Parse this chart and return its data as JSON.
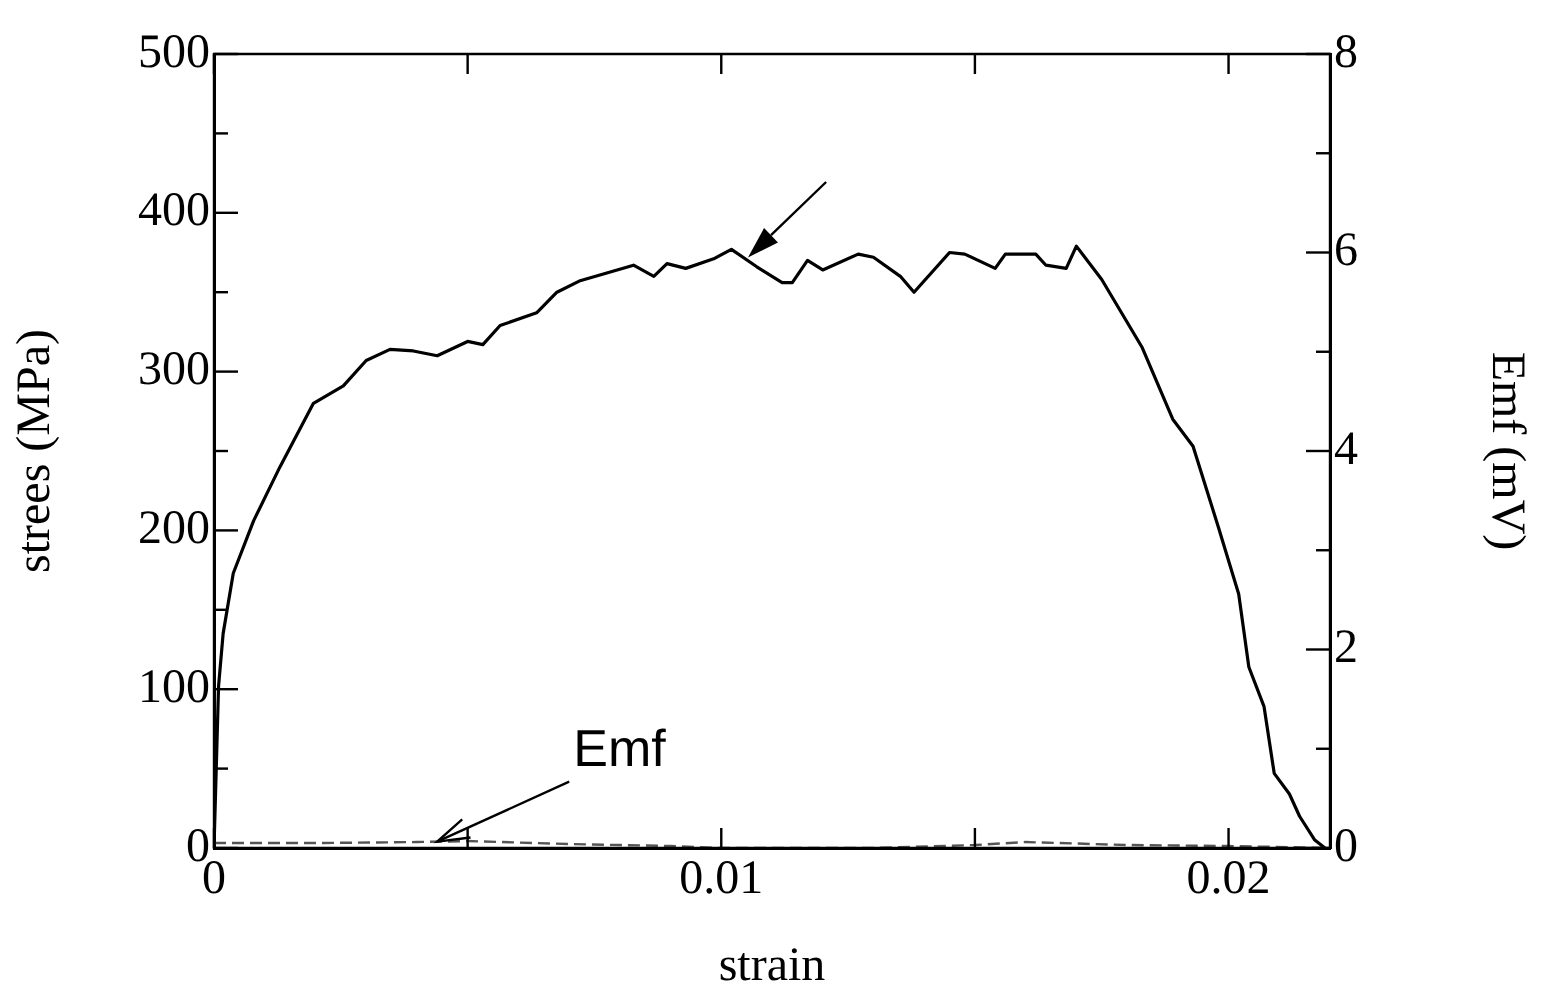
{
  "chart_data": {
    "type": "line",
    "xlabel": "strain",
    "ylabel": "strees (MPa)",
    "y2label": "Emf (mV)",
    "xlim": [
      0,
      0.022
    ],
    "xticks": [
      0,
      {
        "value": 0.005,
        "label": null
      },
      0.01,
      {
        "value": 0.015,
        "label": null
      },
      0.02
    ],
    "ylim": [
      0,
      500
    ],
    "yticks": [
      0,
      {
        "value": 50,
        "label": null
      },
      100,
      {
        "value": 150,
        "label": null
      },
      200,
      {
        "value": 250,
        "label": null
      },
      300,
      {
        "value": 350,
        "label": null
      },
      400,
      {
        "value": 450,
        "label": null
      },
      500
    ],
    "y2lim": [
      0,
      8
    ],
    "y2ticks": [
      0,
      {
        "value": 1,
        "label": null
      },
      2,
      {
        "value": 3,
        "label": null
      },
      4,
      {
        "value": 5,
        "label": null
      },
      6,
      {
        "value": 7,
        "label": null
      },
      8
    ],
    "annotations": [
      {
        "text": "Emf",
        "x": 0.0044,
        "y": 4
      }
    ],
    "grid": false,
    "legend": false,
    "marker": "none",
    "series": [
      {
        "color": "#000000",
        "line_style": "solid",
        "x": [
          0,
          9e-05,
          0.00018,
          0.00038,
          0.00078,
          0.0013,
          0.00196,
          0.00255,
          0.003,
          0.00347,
          0.00393,
          0.0044,
          0.005,
          0.0053,
          0.00564,
          0.00636,
          0.00676,
          0.0072,
          0.00827,
          0.00867,
          0.00893,
          0.0093,
          0.00985,
          0.0102,
          0.0107,
          0.0112,
          0.0114,
          0.0117,
          0.012,
          0.0127,
          0.013,
          0.01353,
          0.0138,
          0.0145,
          0.0148,
          0.0154,
          0.0156,
          0.0162,
          0.0164,
          0.0168,
          0.017,
          0.0175,
          0.0183,
          0.0189,
          0.0193,
          0.0198,
          0.0202,
          0.0204,
          0.0207,
          0.0209,
          0.0212,
          0.0214,
          0.0217,
          0.0219
        ],
        "values": [
          0,
          102,
          135,
          173,
          206,
          240,
          280,
          291,
          307,
          314,
          313,
          310,
          319,
          317,
          329,
          337,
          350,
          357,
          367,
          360,
          368,
          365,
          371,
          377,
          366,
          356,
          356,
          370,
          364,
          374,
          372,
          360,
          350,
          375,
          374,
          365,
          374,
          374,
          367,
          365,
          379,
          358,
          315,
          270,
          253,
          202,
          160,
          114,
          89,
          47,
          34,
          20,
          5,
          0
        ]
      },
      {
        "axis": "y2",
        "color": "#555555",
        "line_style": "dashed",
        "x": [
          0,
          0.002,
          0.004,
          0.005,
          0.007,
          0.009,
          0.01,
          0.013,
          0.015,
          0.016,
          0.018,
          0.02,
          0.022
        ],
        "values": [
          0.05,
          0.05,
          0.06,
          0.07,
          0.04,
          0.02,
          0,
          0,
          0.03,
          0.06,
          0.03,
          0.02,
          0
        ]
      }
    ]
  }
}
